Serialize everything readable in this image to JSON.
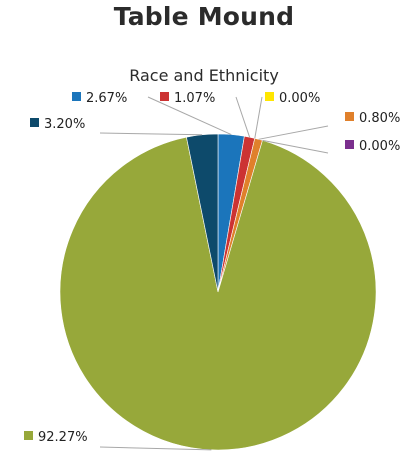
{
  "page": {
    "title": "Table Mound"
  },
  "chart_data": {
    "type": "pie",
    "title": "Race and Ethnicity",
    "start_angle_deg": 0,
    "direction": "clockwise",
    "slices": [
      {
        "label": "2.67%",
        "value": 2.67,
        "color": "#1b75bb",
        "label_pos": "top-left"
      },
      {
        "label": "1.07%",
        "value": 1.07,
        "color": "#cc3333",
        "label_pos": "top"
      },
      {
        "label": "0.00%",
        "value": 0.0,
        "color": "#ffe600",
        "label_pos": "top-right"
      },
      {
        "label": "0.80%",
        "value": 0.8,
        "color": "#e0802b",
        "label_pos": "right"
      },
      {
        "label": "0.00%",
        "value": 0.0,
        "color": "#7b2f8e",
        "label_pos": "right"
      },
      {
        "label": "92.27%",
        "value": 92.27,
        "color": "#97a83a",
        "label_pos": "bottom-left"
      },
      {
        "label": "3.20%",
        "value": 3.2,
        "color": "#0d4a6b",
        "label_pos": "left"
      }
    ]
  }
}
